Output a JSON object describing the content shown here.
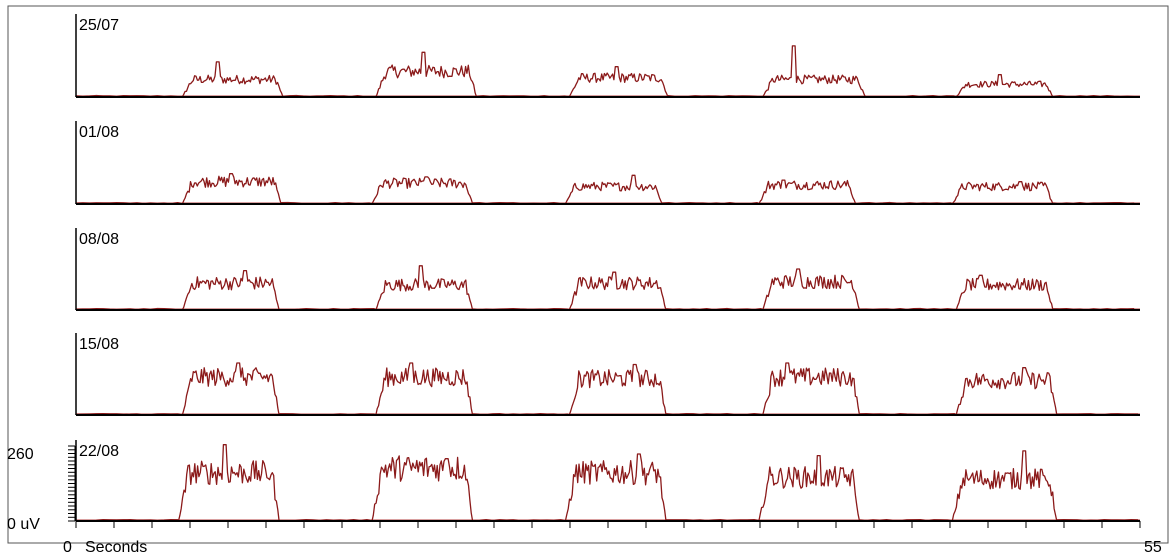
{
  "chart_data": {
    "type": "line",
    "x_unit_label": "Seconds",
    "x_min_label": "0",
    "x_max_label": "55",
    "xlim": [
      0,
      55
    ],
    "y_top_label": "260",
    "y_bottom_label": "0 uV",
    "ylim": [
      0,
      260
    ],
    "trace_color": "#8b1a1a",
    "baseline_color": "#d9a0a0",
    "panel_border_color": "#000000",
    "x_tick_count": 28,
    "panels": [
      {
        "label": "25/07",
        "bursts": [
          {
            "start": 5.5,
            "end": 10.7,
            "level": 55,
            "peak": 110
          },
          {
            "start": 15.5,
            "end": 20.7,
            "level": 80,
            "peak": 140
          },
          {
            "start": 25.5,
            "end": 30.6,
            "level": 60,
            "peak": 95
          },
          {
            "start": 35.5,
            "end": 40.8,
            "level": 55,
            "peak": 160
          },
          {
            "start": 45.5,
            "end": 50.5,
            "level": 40,
            "peak": 70
          }
        ]
      },
      {
        "label": "01/08",
        "bursts": [
          {
            "start": 5.5,
            "end": 10.6,
            "level": 70,
            "peak": 95
          },
          {
            "start": 15.3,
            "end": 20.5,
            "level": 65,
            "peak": 85
          },
          {
            "start": 25.3,
            "end": 30.3,
            "level": 55,
            "peak": 90
          },
          {
            "start": 35.3,
            "end": 40.3,
            "level": 60,
            "peak": 75
          },
          {
            "start": 45.3,
            "end": 50.5,
            "level": 55,
            "peak": 70
          }
        ]
      },
      {
        "label": "08/08",
        "bursts": [
          {
            "start": 5.5,
            "end": 10.5,
            "level": 85,
            "peak": 125
          },
          {
            "start": 15.5,
            "end": 20.5,
            "level": 80,
            "peak": 140
          },
          {
            "start": 25.5,
            "end": 30.5,
            "level": 85,
            "peak": 120
          },
          {
            "start": 35.5,
            "end": 40.5,
            "level": 90,
            "peak": 130
          },
          {
            "start": 45.5,
            "end": 50.5,
            "level": 80,
            "peak": 110
          }
        ]
      },
      {
        "label": "15/08",
        "bursts": [
          {
            "start": 5.5,
            "end": 10.5,
            "level": 120,
            "peak": 165
          },
          {
            "start": 15.5,
            "end": 20.5,
            "level": 120,
            "peak": 165
          },
          {
            "start": 25.5,
            "end": 30.5,
            "level": 115,
            "peak": 160
          },
          {
            "start": 35.5,
            "end": 40.5,
            "level": 120,
            "peak": 165
          },
          {
            "start": 45.5,
            "end": 50.7,
            "level": 110,
            "peak": 150
          }
        ]
      },
      {
        "label": "22/08",
        "bursts": [
          {
            "start": 5.3,
            "end": 10.5,
            "level": 155,
            "peak": 245
          },
          {
            "start": 15.3,
            "end": 20.5,
            "level": 170,
            "peak": 200
          },
          {
            "start": 25.3,
            "end": 30.5,
            "level": 155,
            "peak": 215
          },
          {
            "start": 35.3,
            "end": 40.5,
            "level": 140,
            "peak": 210
          },
          {
            "start": 45.3,
            "end": 50.7,
            "level": 135,
            "peak": 225
          }
        ]
      }
    ]
  }
}
